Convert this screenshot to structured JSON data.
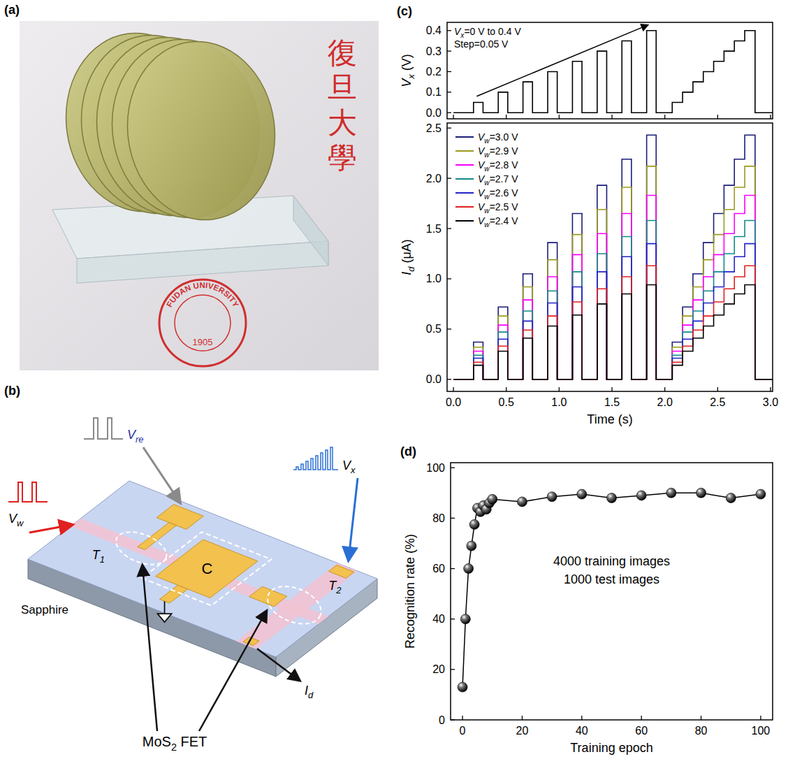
{
  "photo": {
    "label": "(a)",
    "texts": [
      "復旦大學",
      "FUDAN UNIVERSITY",
      "1905"
    ]
  },
  "diagram": {
    "label": "(b)",
    "substrate": "Sapphire",
    "device": "MoS2 FET",
    "capacitor": "C",
    "transistors": [
      "T1",
      "T2"
    ],
    "inputs": [
      "Vre",
      "Vx",
      "Vw"
    ],
    "output": "Id"
  },
  "chart_data": [
    {
      "type": "line",
      "title": "(c)",
      "x": [
        0,
        0.19,
        0.19,
        0.28,
        0.28,
        0.424,
        0.424,
        0.514,
        0.514,
        0.658,
        0.658,
        0.748,
        0.748,
        0.892,
        0.892,
        0.982,
        0.982,
        1.126,
        1.126,
        1.216,
        1.216,
        1.36,
        1.36,
        1.45,
        1.45,
        1.594,
        1.594,
        1.684,
        1.684,
        1.828,
        1.828,
        1.918,
        1.918,
        2.07,
        2.07,
        2.168,
        2.168,
        2.266,
        2.266,
        2.364,
        2.364,
        2.462,
        2.462,
        2.56,
        2.56,
        2.658,
        2.658,
        2.756,
        2.756,
        2.854,
        2.854,
        3.02
      ],
      "values": [
        0,
        0,
        0.05,
        0.05,
        0,
        0,
        0.1,
        0.1,
        0,
        0,
        0.15,
        0.15,
        0,
        0,
        0.2,
        0.2,
        0,
        0,
        0.25,
        0.25,
        0,
        0,
        0.3,
        0.3,
        0,
        0,
        0.35,
        0.35,
        0,
        0,
        0.4,
        0.4,
        0,
        0,
        0.05,
        0.05,
        0.1,
        0.1,
        0.15,
        0.15,
        0.2,
        0.2,
        0.25,
        0.25,
        0.3,
        0.3,
        0.35,
        0.35,
        0.4,
        0.4,
        0,
        0
      ],
      "color": "#000000",
      "xlim": [
        -0.06,
        3.02
      ],
      "xticks": [
        0,
        0.5,
        1,
        1.5,
        2,
        2.5,
        3
      ],
      "ylim": [
        -0.03,
        0.44
      ],
      "yticks": [
        {
          "value": 0,
          "label": "0.0"
        },
        0.1,
        0.2,
        0.3,
        0.4
      ],
      "tick_labels": "y",
      "y_label": "Vx (V)",
      "annotations": [
        "Vx=0 V to 0.4 V",
        "Step=0.05 V"
      ]
    },
    {
      "type": "line",
      "x": [
        0,
        0.19,
        0.19,
        0.28,
        0.28,
        0.424,
        0.424,
        0.514,
        0.514,
        0.658,
        0.658,
        0.748,
        0.748,
        0.892,
        0.892,
        0.982,
        0.982,
        1.126,
        1.126,
        1.216,
        1.216,
        1.36,
        1.36,
        1.45,
        1.45,
        1.594,
        1.594,
        1.684,
        1.684,
        1.828,
        1.828,
        1.918,
        1.918,
        2.07,
        2.07,
        2.168,
        2.168,
        2.266,
        2.266,
        2.364,
        2.364,
        2.462,
        2.462,
        2.56,
        2.56,
        2.658,
        2.658,
        2.756,
        2.756,
        2.854,
        2.854,
        3.02
      ],
      "series": [
        {
          "name": "Vw=3.0 V",
          "color": "#1c1c7a",
          "values": [
            0,
            0,
            0.37,
            0.37,
            0,
            0,
            0.72,
            0.72,
            0,
            0,
            1.05,
            1.05,
            0,
            0,
            1.36,
            1.36,
            0,
            0,
            1.65,
            1.65,
            0,
            0,
            1.93,
            1.93,
            0,
            0,
            2.19,
            2.19,
            0,
            0,
            2.43,
            2.43,
            0,
            0,
            0.37,
            0.37,
            0.72,
            0.72,
            1.05,
            1.05,
            1.36,
            1.36,
            1.65,
            1.65,
            1.93,
            1.93,
            2.19,
            2.19,
            2.43,
            2.43,
            0,
            0
          ]
        },
        {
          "name": "Vw=2.9 V",
          "color": "#9a9a1e",
          "values": [
            0,
            0,
            0.32,
            0.32,
            0,
            0,
            0.63,
            0.63,
            0,
            0,
            0.92,
            0.92,
            0,
            0,
            1.19,
            1.19,
            0,
            0,
            1.44,
            1.44,
            0,
            0,
            1.69,
            1.69,
            0,
            0,
            1.91,
            1.91,
            0,
            0,
            2.12,
            2.12,
            0,
            0,
            0.32,
            0.32,
            0.63,
            0.63,
            0.92,
            0.92,
            1.19,
            1.19,
            1.44,
            1.44,
            1.69,
            1.69,
            1.91,
            1.91,
            2.12,
            2.12,
            0,
            0
          ]
        },
        {
          "name": "Vw=2.8 V",
          "color": "#ff00ff",
          "values": [
            0,
            0,
            0.28,
            0.28,
            0,
            0,
            0.54,
            0.54,
            0,
            0,
            0.79,
            0.79,
            0,
            0,
            1.02,
            1.02,
            0,
            0,
            1.24,
            1.24,
            0,
            0,
            1.45,
            1.45,
            0,
            0,
            1.65,
            1.65,
            0,
            0,
            1.83,
            1.83,
            0,
            0,
            0.28,
            0.28,
            0.54,
            0.54,
            0.79,
            0.79,
            1.02,
            1.02,
            1.24,
            1.24,
            1.45,
            1.45,
            1.65,
            1.65,
            1.83,
            1.83,
            0,
            0
          ]
        },
        {
          "name": "Vw=2.7 V",
          "color": "#128a8a",
          "values": [
            0,
            0,
            0.24,
            0.24,
            0,
            0,
            0.47,
            0.47,
            0,
            0,
            0.68,
            0.68,
            0,
            0,
            0.88,
            0.88,
            0,
            0,
            1.07,
            1.07,
            0,
            0,
            1.25,
            1.25,
            0,
            0,
            1.42,
            1.42,
            0,
            0,
            1.58,
            1.58,
            0,
            0,
            0.24,
            0.24,
            0.47,
            0.47,
            0.68,
            0.68,
            0.88,
            0.88,
            1.07,
            1.07,
            1.25,
            1.25,
            1.42,
            1.42,
            1.58,
            1.58,
            0,
            0
          ]
        },
        {
          "name": "Vw=2.6 V",
          "color": "#2323c8",
          "values": [
            0,
            0,
            0.21,
            0.21,
            0,
            0,
            0.4,
            0.4,
            0,
            0,
            0.58,
            0.58,
            0,
            0,
            0.76,
            0.76,
            0,
            0,
            0.92,
            0.92,
            0,
            0,
            1.07,
            1.07,
            0,
            0,
            1.22,
            1.22,
            0,
            0,
            1.35,
            1.35,
            0,
            0,
            0.21,
            0.21,
            0.4,
            0.4,
            0.58,
            0.58,
            0.76,
            0.76,
            0.92,
            0.92,
            1.07,
            1.07,
            1.22,
            1.22,
            1.35,
            1.35,
            0,
            0
          ]
        },
        {
          "name": "Vw=2.5 V",
          "color": "#e02020",
          "values": [
            0,
            0,
            0.17,
            0.17,
            0,
            0,
            0.33,
            0.33,
            0,
            0,
            0.49,
            0.49,
            0,
            0,
            0.63,
            0.63,
            0,
            0,
            0.77,
            0.77,
            0,
            0,
            0.9,
            0.9,
            0,
            0,
            1.02,
            1.02,
            0,
            0,
            1.13,
            1.13,
            0,
            0,
            0.17,
            0.17,
            0.33,
            0.33,
            0.49,
            0.49,
            0.63,
            0.63,
            0.77,
            0.77,
            0.9,
            0.9,
            1.02,
            1.02,
            1.13,
            1.13,
            0,
            0
          ]
        },
        {
          "name": "Vw=2.4 V",
          "color": "#000000",
          "values": [
            0,
            0,
            0.14,
            0.14,
            0,
            0,
            0.28,
            0.28,
            0,
            0,
            0.41,
            0.41,
            0,
            0,
            0.53,
            0.53,
            0,
            0,
            0.64,
            0.64,
            0,
            0,
            0.75,
            0.75,
            0,
            0,
            0.85,
            0.85,
            0,
            0,
            0.94,
            0.94,
            0,
            0,
            0.14,
            0.14,
            0.28,
            0.28,
            0.41,
            0.41,
            0.53,
            0.53,
            0.64,
            0.64,
            0.75,
            0.75,
            0.85,
            0.85,
            0.94,
            0.94,
            0,
            0
          ]
        }
      ],
      "xlim": [
        -0.06,
        3.02
      ],
      "xticks": [
        {
          "value": 0,
          "label": "0.0"
        },
        0.5,
        {
          "value": 1,
          "label": "1.0"
        },
        1.5,
        {
          "value": 2,
          "label": "2.0"
        },
        2.5,
        {
          "value": 3,
          "label": "3.0"
        }
      ],
      "ylim": [
        -0.12,
        2.55
      ],
      "yticks": [
        {
          "value": 0,
          "label": "0.0"
        },
        0.5,
        {
          "value": 1,
          "label": "1.0"
        },
        1.5,
        {
          "value": 2,
          "label": "2.0"
        },
        2.5
      ],
      "x_label": "Time (s)",
      "y_label": "Id (μA)",
      "legend": "upper left"
    },
    {
      "type": "line",
      "title": "(d)",
      "x": [
        0,
        1,
        2,
        3,
        4,
        5,
        6,
        7,
        8,
        9,
        10,
        20,
        30,
        40,
        50,
        60,
        70,
        80,
        90,
        100
      ],
      "values": [
        13,
        40,
        60,
        69,
        77.5,
        84,
        82.5,
        85,
        83.5,
        86,
        87.5,
        86.5,
        88.5,
        89.5,
        88,
        89,
        90,
        90,
        88,
        89.5
      ],
      "color": "#000000",
      "marker": "sphere",
      "xlim": [
        -4,
        104
      ],
      "xticks": [
        0,
        20,
        40,
        60,
        80,
        100
      ],
      "ylim": [
        0,
        102
      ],
      "yticks": [
        0,
        20,
        40,
        60,
        80,
        100
      ],
      "x_label": "Training epoch",
      "y_label": "Recognition rate (%)",
      "annotations": [
        "4000 training images",
        "1000 test images"
      ]
    }
  ]
}
